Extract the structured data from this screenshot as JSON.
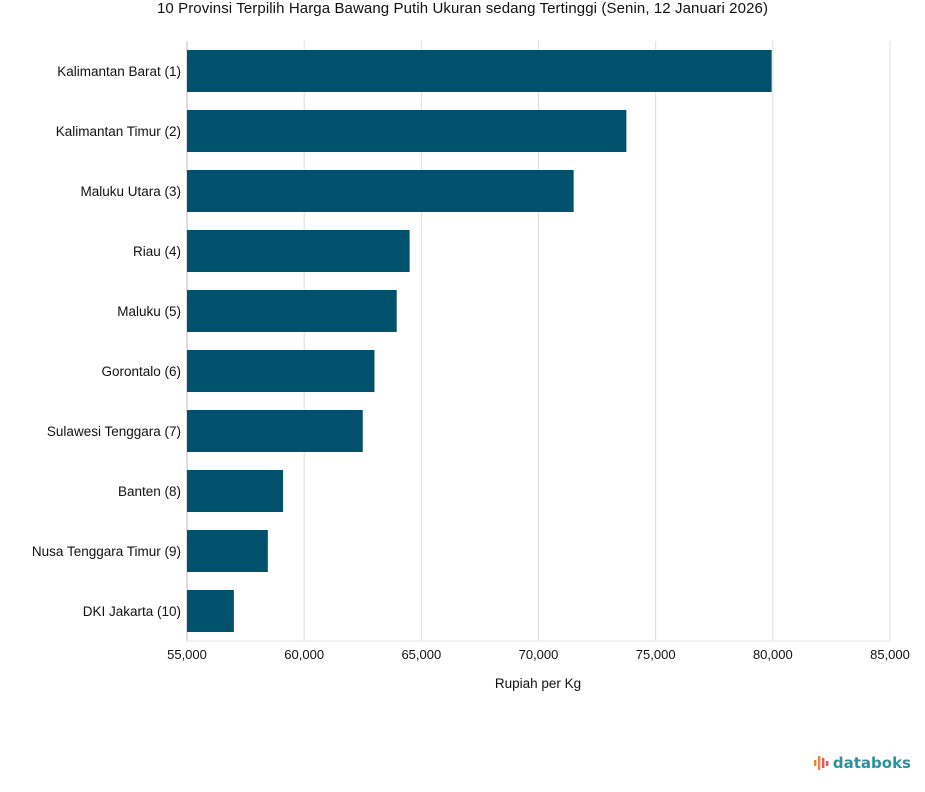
{
  "chart_data": {
    "type": "bar",
    "orientation": "horizontal",
    "title": "10 Provinsi Terpilih Harga Bawang Putih Ukuran sedang Tertinggi (Senin, 12 Januari 2026)",
    "xlabel": "Rupiah per Kg",
    "ylabel": "",
    "categories": [
      "Kalimantan Barat (1)",
      "Kalimantan Timur (2)",
      "Maluku Utara (3)",
      "Riau (4)",
      "Maluku (5)",
      "Gorontalo (6)",
      "Sulawesi Tenggara (7)",
      "Banten (8)",
      "Nusa Tenggara Timur (9)",
      "DKI Jakarta (10)"
    ],
    "values": [
      79950,
      73750,
      71500,
      64500,
      63950,
      63000,
      62500,
      59100,
      58450,
      57000
    ],
    "xlim": [
      55000,
      85000
    ],
    "xticks": [
      55000,
      60000,
      65000,
      70000,
      75000,
      80000,
      85000
    ],
    "xtick_labels": [
      "55,000",
      "60,000",
      "65,000",
      "70,000",
      "75,000",
      "80,000",
      "85,000"
    ],
    "grid": true,
    "bar_color": "#00526c"
  },
  "brand": {
    "name": "databoks",
    "color": "#2f8f9d",
    "icon": "databoks-logo-icon"
  }
}
